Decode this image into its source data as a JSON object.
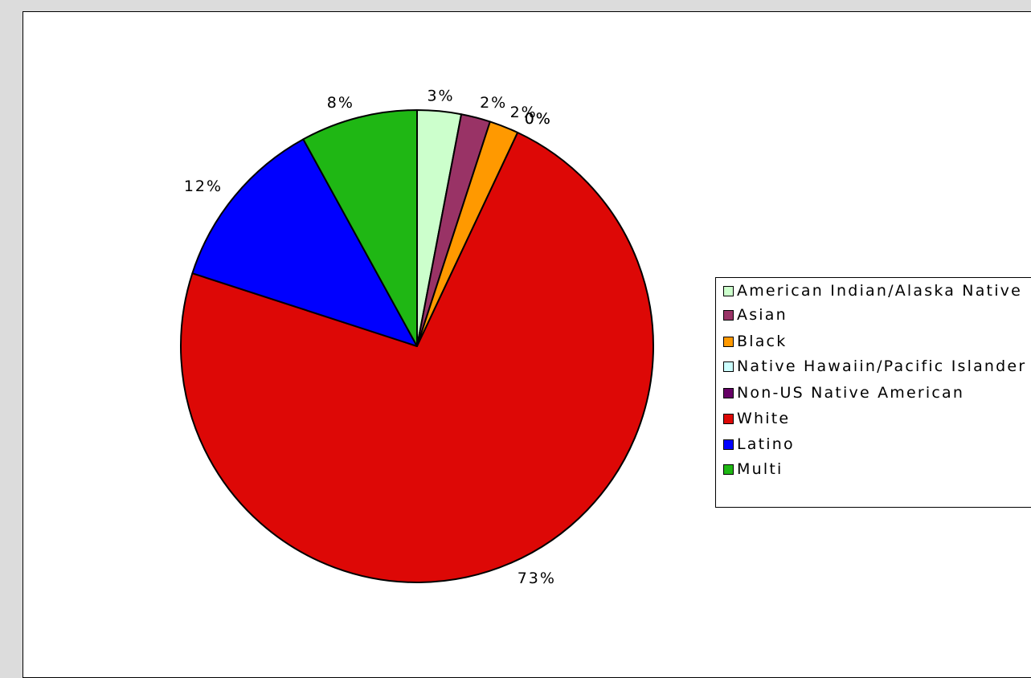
{
  "chart_data": {
    "type": "pie",
    "slices": [
      {
        "name": "American Indian/Alaska Native",
        "value": 3,
        "label": "3%",
        "color": "#ccffcc"
      },
      {
        "name": "Asian",
        "value": 2,
        "label": "2%",
        "color": "#993366"
      },
      {
        "name": "Black",
        "value": 2,
        "label": "2%",
        "color": "#ff9900"
      },
      {
        "name": "Native Hawaiin/Pacific Islander",
        "value": 0,
        "label": "0%",
        "color": "#ccffff"
      },
      {
        "name": "Non-US Native American",
        "value": 0,
        "label": "0%",
        "color": "#660066"
      },
      {
        "name": "White",
        "value": 73,
        "label": "73%",
        "color": "#dd0806"
      },
      {
        "name": "Latino",
        "value": 12,
        "label": "12%",
        "color": "#0000ff"
      },
      {
        "name": "Multi",
        "value": 8,
        "label": "8%",
        "color": "#1fb714"
      }
    ],
    "legend": "right",
    "start_angle_deg": 0,
    "direction": "clockwise"
  },
  "legend_items": [
    {
      "label": "American Indian/Alaska Native",
      "color": "#ccffcc"
    },
    {
      "label": "Asian",
      "color": "#993366"
    },
    {
      "label": "Black",
      "color": "#ff9900"
    },
    {
      "label": "Native Hawaiin/Pacific Islander",
      "color": "#ccffff"
    },
    {
      "label": "Non-US Native American",
      "color": "#660066"
    },
    {
      "label": "White",
      "color": "#dd0806"
    },
    {
      "label": "Latino",
      "color": "#0000ff"
    },
    {
      "label": "Multi",
      "color": "#1fb714"
    }
  ]
}
